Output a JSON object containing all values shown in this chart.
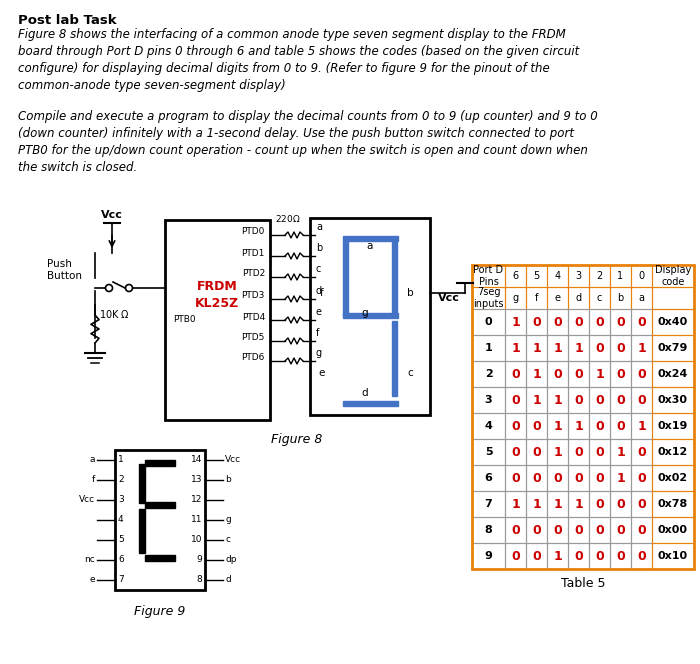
{
  "title_bold": "Post lab Task",
  "paragraph1": "Figure 8 shows the interfacing of a common anode type seven segment display to the FRDM\nboard through Port D pins 0 through 6 and table 5 shows the codes (based on the given circuit\nconfigure) for displaying decimal digits from 0 to 9. (Refer to figure 9 for the pinout of the\ncommon-anode type seven-segment display)",
  "paragraph2": "Compile and execute a program to display the decimal counts from 0 to 9 (up counter) and 9 to 0\n(down counter) infinitely with a 1-second delay. Use the push button switch connected to port\nPTB0 for the up/down count operation - count up when the switch is open and count down when\nthe switch is closed.",
  "table_header_row1": [
    "Port D\nPins",
    "6",
    "5",
    "4",
    "3",
    "2",
    "1",
    "0",
    "Display\ncode"
  ],
  "table_header_row2": [
    "7seg\ninputs",
    "g",
    "f",
    "e",
    "d",
    "c",
    "b",
    "a",
    ""
  ],
  "table_data": [
    [
      "0",
      "1",
      "0",
      "0",
      "0",
      "0",
      "0",
      "0",
      "0x40"
    ],
    [
      "1",
      "1",
      "1",
      "1",
      "1",
      "0",
      "0",
      "1",
      "0x79"
    ],
    [
      "2",
      "0",
      "1",
      "0",
      "0",
      "1",
      "0",
      "0",
      "0x24"
    ],
    [
      "3",
      "0",
      "1",
      "1",
      "0",
      "0",
      "0",
      "0",
      "0x30"
    ],
    [
      "4",
      "0",
      "0",
      "1",
      "1",
      "0",
      "0",
      "1",
      "0x19"
    ],
    [
      "5",
      "0",
      "0",
      "1",
      "0",
      "0",
      "1",
      "0",
      "0x12"
    ],
    [
      "6",
      "0",
      "0",
      "0",
      "0",
      "0",
      "1",
      "0",
      "0x02"
    ],
    [
      "7",
      "1",
      "1",
      "1",
      "1",
      "0",
      "0",
      "0",
      "0x78"
    ],
    [
      "8",
      "0",
      "0",
      "0",
      "0",
      "0",
      "0",
      "0",
      "0x00"
    ],
    [
      "9",
      "0",
      "0",
      "1",
      "0",
      "0",
      "0",
      "0",
      "0x10"
    ]
  ],
  "table5_caption": "Table 5",
  "fig8_caption": "Figure 8",
  "fig9_caption": "Figure 9",
  "orange_color": "#E8820C",
  "red_color": "#CC0000",
  "black_color": "#000000",
  "bg_color": "#FFFFFF",
  "segment_color": "#4472C4",
  "frdm_label_color": "#CC0000"
}
